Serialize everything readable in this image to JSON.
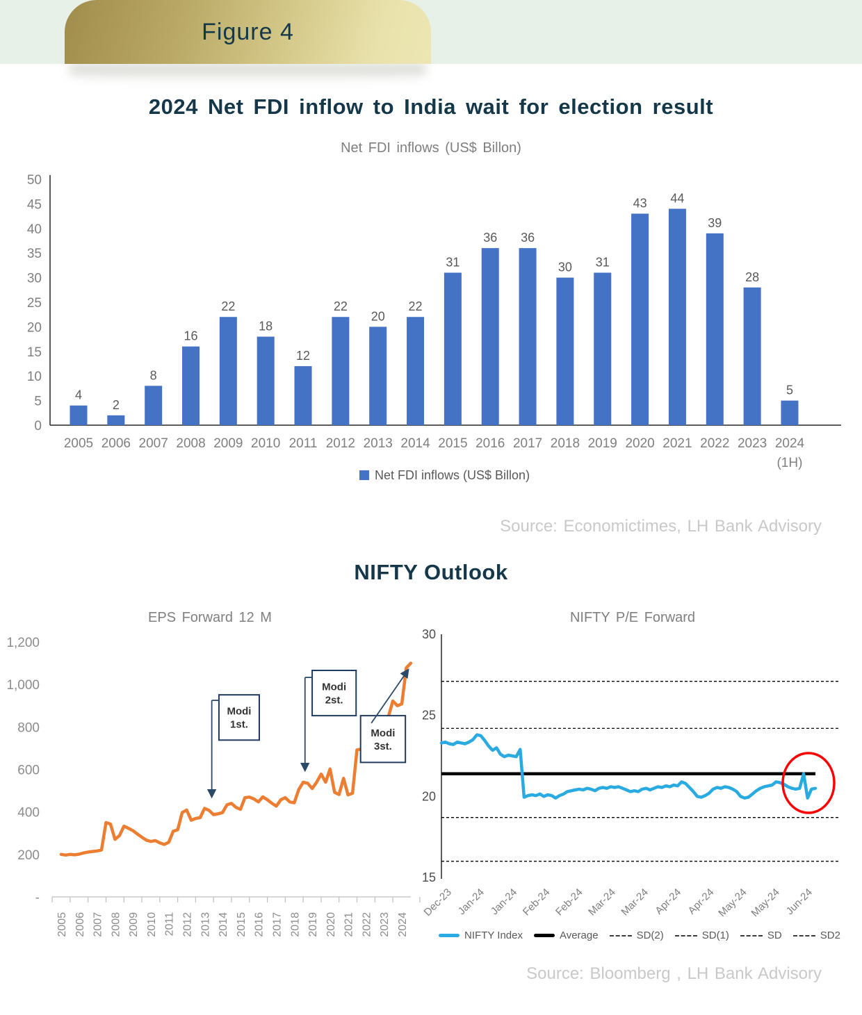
{
  "figure": {
    "label": "Figure 4"
  },
  "fdi_section": {
    "title": "2024 Net FDI inflow to India wait for election result",
    "source": "Source: Economictimes, LH Bank Advisory"
  },
  "nifty_section": {
    "title": "NIFTY Outlook",
    "source": "Source: Bloomberg , LH Bank Advisory"
  },
  "colors": {
    "banner_gold_dark": "#a18c4b",
    "banner_gold_light": "#ece6b4",
    "strip_green": "#e7f1e8",
    "heading_teal": "#14384a",
    "bar_blue": "#4472c4",
    "eps_orange": "#ed7d31",
    "pe_blue": "#29abe2",
    "average_black": "#000000",
    "highlight_red": "#ff0000",
    "source_gray": "#c9c9c9"
  },
  "chart_data": [
    {
      "id": "fdi",
      "type": "bar",
      "title": "Net FDI inflows (US$ Billon)",
      "categories": [
        "2005",
        "2006",
        "2007",
        "2008",
        "2009",
        "2010",
        "2011",
        "2012",
        "2013",
        "2014",
        "2015",
        "2016",
        "2017",
        "2018",
        "2019",
        "2020",
        "2021",
        "2022",
        "2023",
        "2024"
      ],
      "category_note": "(1H)",
      "values": [
        4,
        2,
        8,
        16,
        22,
        18,
        12,
        22,
        20,
        22,
        31,
        36,
        36,
        30,
        31,
        43,
        44,
        39,
        28,
        5
      ],
      "ylim": [
        0,
        50
      ],
      "ytick_step": 5,
      "grid": false,
      "legend": [
        "Net FDI inflows (US$ Billon)"
      ],
      "legend_position": "bottom",
      "bar_color": "#4472c4"
    },
    {
      "id": "eps",
      "type": "line",
      "title": "EPS Forward 12 M",
      "x_start": 2005,
      "x_step": 0.25,
      "values": [
        200,
        197,
        200,
        198,
        201,
        207,
        211,
        214,
        216,
        221,
        350,
        343,
        271,
        288,
        333,
        323,
        312,
        296,
        281,
        267,
        261,
        265,
        254,
        247,
        257,
        309,
        316,
        397,
        409,
        361,
        369,
        373,
        417,
        407,
        387,
        391,
        397,
        434,
        440,
        421,
        412,
        467,
        470,
        461,
        447,
        471,
        457,
        441,
        427,
        457,
        467,
        447,
        443,
        505,
        540,
        535,
        510,
        540,
        578,
        540,
        602,
        492,
        482,
        558,
        480,
        488,
        692,
        696,
        682,
        688,
        828,
        836,
        830,
        848,
        922,
        900,
        908,
        1078,
        1100
      ],
      "ylim": [
        0,
        1300
      ],
      "ytick_labels": [
        "1,200",
        "1,000",
        "800",
        "600",
        "400",
        "200",
        "-"
      ],
      "ytick_values": [
        1200,
        1000,
        800,
        600,
        400,
        200,
        0
      ],
      "xticks": [
        "2005",
        "2006",
        "2007",
        "2008",
        "2009",
        "2010",
        "2011",
        "2012",
        "2013",
        "2014",
        "2015",
        "2016",
        "2017",
        "2018",
        "2019",
        "2020",
        "2021",
        "2022",
        "2023",
        "2024"
      ],
      "grid": false,
      "line_color": "#ed7d31",
      "annotations": [
        {
          "lines": [
            "Modi",
            "1st."
          ],
          "box": {
            "x1": 2013.8,
            "x2": 2016.05,
            "top": 951,
            "bottom": 738
          },
          "arrow": {
            "x1": 2013.4,
            "y1": 925,
            "x2": 2013.4,
            "y2": 472
          },
          "foot": true
        },
        {
          "lines": [
            "Modi",
            "2st."
          ],
          "box": {
            "x1": 2019.0,
            "x2": 2021.45,
            "top": 1066,
            "bottom": 853
          },
          "arrow": {
            "x1": 2018.6,
            "y1": 1033,
            "x2": 2018.6,
            "y2": 596
          },
          "foot": true
        },
        {
          "lines": [
            "Modi",
            "3st."
          ],
          "box": {
            "x1": 2021.7,
            "x2": 2024.2,
            "top": 853,
            "bottom": 633
          },
          "arrow": {
            "x1": 2022.3,
            "y1": 818,
            "x2": 2024.35,
            "y2": 1068
          },
          "foot": false
        }
      ]
    },
    {
      "id": "pe",
      "type": "line",
      "title": "NIFTY P/E Forward",
      "xticks": [
        "Dec-23",
        "Jan-24",
        "Jan-24",
        "Feb-24",
        "Feb-24",
        "Mar-24",
        "Mar-24",
        "Apr-24",
        "Apr-24",
        "May-24",
        "May-24",
        "Jun-24"
      ],
      "values": [
        23.3,
        23.35,
        23.25,
        23.2,
        23.35,
        23.3,
        23.25,
        23.35,
        23.5,
        23.8,
        23.75,
        23.45,
        23.1,
        22.85,
        23.0,
        22.6,
        22.45,
        22.55,
        22.5,
        22.45,
        22.9,
        19.95,
        20.05,
        20.1,
        20.05,
        20.15,
        20.0,
        20.1,
        20.05,
        19.9,
        20.05,
        20.15,
        20.3,
        20.35,
        20.4,
        20.45,
        20.4,
        20.5,
        20.45,
        20.35,
        20.5,
        20.55,
        20.5,
        20.6,
        20.55,
        20.6,
        20.5,
        20.4,
        20.3,
        20.35,
        20.3,
        20.45,
        20.5,
        20.4,
        20.5,
        20.6,
        20.55,
        20.65,
        20.6,
        20.7,
        20.65,
        20.9,
        20.8,
        20.55,
        20.3,
        20.0,
        19.95,
        20.05,
        20.2,
        20.45,
        20.55,
        20.5,
        20.6,
        20.55,
        20.45,
        20.3,
        20.0,
        19.9,
        19.95,
        20.15,
        20.35,
        20.5,
        20.6,
        20.65,
        20.7,
        20.9,
        20.85,
        20.75,
        20.6,
        20.5,
        20.45,
        20.5,
        21.4,
        19.9,
        20.45,
        20.5
      ],
      "ylim": [
        15,
        30
      ],
      "yticks": [
        30,
        25,
        20,
        15
      ],
      "average": 21.4,
      "sd_lines": [
        {
          "label": "SD(2)",
          "value": 27.1
        },
        {
          "label": "SD(1)",
          "value": 24.2
        },
        {
          "label": "SD",
          "value": 18.7
        },
        {
          "label": "SD2",
          "value": 16.0
        }
      ],
      "line_color": "#29abe2",
      "average_color": "#000000",
      "highlight_color": "#ff0000",
      "legend": [
        {
          "label": "NIFTY Index",
          "style": "line",
          "color": "#29abe2"
        },
        {
          "label": "Average",
          "style": "line",
          "color": "#000000"
        },
        {
          "label": "SD(2)",
          "style": "dashed"
        },
        {
          "label": "SD(1)",
          "style": "dashed"
        },
        {
          "label": "SD",
          "style": "dashed"
        },
        {
          "label": "SD2",
          "style": "dashed"
        }
      ]
    }
  ]
}
